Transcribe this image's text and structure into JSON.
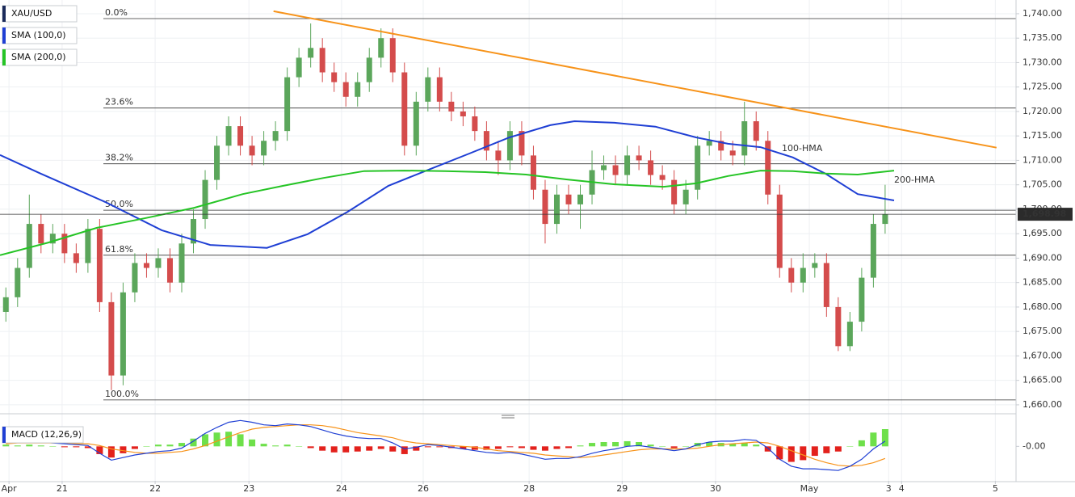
{
  "chart_data": [
    {
      "type": "candlestick",
      "legend_items": [
        {
          "label": "XAU/USD",
          "color": "#1a2a5a"
        },
        {
          "label": "SMA (100,0)",
          "color": "#1f3fd4"
        },
        {
          "label": "SMA (200,0)",
          "color": "#25c425"
        }
      ],
      "x": [
        1.5,
        4.5,
        7.5,
        10.5,
        13.5,
        16.5,
        19.5,
        22.5,
        25.5,
        28.5,
        31.5,
        34.5,
        37.5,
        40.5,
        43.5,
        46.5,
        49.5,
        52.5,
        55.5,
        58.5,
        61.5,
        64.5,
        67.5,
        70.5,
        73.5,
        76.5,
        79.5,
        82.5,
        85.5,
        88.5,
        91.5,
        94.5,
        97.5,
        100.5,
        103.5,
        106.5,
        109.5,
        112.5,
        115.5,
        118.5,
        121.5,
        124.5,
        127.5,
        130.5,
        133.5,
        136.5,
        139.5,
        142.5,
        145.5,
        148.5,
        151.5,
        154.5,
        157.5,
        160.5,
        163.5,
        166.5,
        169.5,
        172.5,
        175.5,
        178.5,
        181.5,
        184.5,
        187.5,
        190.5,
        193.5,
        196.5,
        199.5,
        202.5,
        205.5,
        208.5,
        211.5,
        214.5,
        217.5,
        220.5,
        223.5,
        226.5
      ],
      "open": [
        1679,
        1682,
        1688,
        1697,
        1693,
        1695,
        1691,
        1689,
        1696,
        1681,
        1666,
        1683,
        1689,
        1688,
        1690,
        1685,
        1693,
        1698,
        1706,
        1713,
        1717,
        1713,
        1711,
        1714,
        1716,
        1727,
        1731,
        1733,
        1728,
        1726,
        1723,
        1726,
        1731,
        1735,
        1728,
        1713,
        1722,
        1727,
        1722,
        1720,
        1719,
        1716,
        1712,
        1710,
        1716,
        1711,
        1704,
        1697,
        1703,
        1701,
        1703,
        1708,
        1709,
        1707,
        1711,
        1710,
        1707,
        1706,
        1701,
        1704,
        1713,
        1714,
        1712,
        1711,
        1718,
        1714,
        1703,
        1688,
        1685,
        1688,
        1689,
        1680,
        1672,
        1677,
        1686,
        1697
      ],
      "high": [
        1684,
        1690,
        1703,
        1699,
        1697,
        1697,
        1693,
        1698,
        1698,
        1683,
        1685,
        1691,
        1691,
        1692,
        1692,
        1695,
        1700,
        1708,
        1715,
        1719,
        1719,
        1715,
        1716,
        1718,
        1729,
        1733,
        1738,
        1735,
        1730,
        1728,
        1728,
        1733,
        1737,
        1737,
        1730,
        1724,
        1729,
        1729,
        1724,
        1722,
        1721,
        1718,
        1714,
        1718,
        1718,
        1713,
        1706,
        1705,
        1705,
        1705,
        1712,
        1711,
        1711,
        1713,
        1713,
        1712,
        1709,
        1708,
        1706,
        1715,
        1716,
        1716,
        1714,
        1722,
        1720,
        1716,
        1705,
        1690,
        1691,
        1691,
        1691,
        1682,
        1679,
        1688,
        1699,
        1705
      ],
      "low": [
        1677,
        1680,
        1686,
        1691,
        1691,
        1689,
        1687,
        1687,
        1679,
        1663,
        1664,
        1681,
        1686,
        1686,
        1683,
        1683,
        1691,
        1696,
        1704,
        1711,
        1711,
        1709,
        1709,
        1712,
        1714,
        1725,
        1729,
        1726,
        1724,
        1721,
        1721,
        1724,
        1729,
        1726,
        1711,
        1711,
        1720,
        1720,
        1718,
        1717,
        1714,
        1710,
        1707,
        1708,
        1709,
        1702,
        1693,
        1695,
        1699,
        1696,
        1701,
        1706,
        1705,
        1705,
        1708,
        1705,
        1704,
        1699,
        1699,
        1702,
        1711,
        1710,
        1709,
        1709,
        1712,
        1701,
        1686,
        1683,
        1683,
        1686,
        1678,
        1671,
        1671,
        1675,
        1684,
        1695
      ],
      "close": [
        1682,
        1688,
        1697,
        1693,
        1695,
        1691,
        1689,
        1696,
        1681,
        1666,
        1683,
        1689,
        1688,
        1690,
        1685,
        1693,
        1698,
        1706,
        1713,
        1717,
        1713,
        1711,
        1714,
        1716,
        1727,
        1731,
        1733,
        1728,
        1726,
        1723,
        1726,
        1731,
        1735,
        1728,
        1713,
        1722,
        1727,
        1722,
        1720,
        1719,
        1716,
        1712,
        1710,
        1716,
        1711,
        1704,
        1697,
        1703,
        1701,
        1703,
        1708,
        1709,
        1707,
        1711,
        1710,
        1707,
        1706,
        1701,
        1704,
        1713,
        1714,
        1712,
        1711,
        1718,
        1714,
        1703,
        1688,
        1685,
        1688,
        1689,
        1680,
        1672,
        1677,
        1686,
        1697,
        1698.98
      ],
      "up_color": "#5ba65b",
      "down_color": "#d44c4c",
      "series": [
        {
          "name": "100-HMA",
          "color": "#1f3fd4",
          "x": [
            0,
            10.4,
            26.9,
            41.4,
            53.8,
            68.3,
            78.7,
            89,
            99.4,
            109.7,
            120.1,
            130.4,
            140.8,
            147,
            157.3,
            167.7,
            178.1,
            186.3,
            194.6,
            202.9,
            211.2,
            219.5,
            228.8
          ],
          "values": [
            1711.1,
            1707.3,
            1701.5,
            1695.7,
            1692.7,
            1692.1,
            1694.9,
            1699.5,
            1704.8,
            1708.1,
            1711.4,
            1714.7,
            1717.2,
            1718,
            1717.7,
            1716.9,
            1714.7,
            1713.4,
            1712.7,
            1710.6,
            1707.3,
            1703.1,
            1701.8
          ]
        },
        {
          "name": "200-HMA",
          "color": "#25c425",
          "x": [
            0,
            12.4,
            24.8,
            37.3,
            49.7,
            62.1,
            72.5,
            82.8,
            93.2,
            103.5,
            113.9,
            124.2,
            134.6,
            144.9,
            157.3,
            169.8,
            178.1,
            186.3,
            194.6,
            202.9,
            211.2,
            219.5,
            228.8
          ],
          "values": [
            1690.6,
            1693.2,
            1696.2,
            1698.2,
            1700.3,
            1703.1,
            1704.8,
            1706.4,
            1707.8,
            1707.9,
            1707.8,
            1707.6,
            1707.1,
            1706.1,
            1705.1,
            1704.6,
            1705.3,
            1706.8,
            1707.9,
            1707.8,
            1707.3,
            1707.1,
            1707.9
          ]
        }
      ],
      "trendline": {
        "color": "#f7931a",
        "x": [
          70,
          255
        ],
        "values": [
          1740.5,
          1712.6
        ]
      },
      "fib_levels": [
        {
          "label": "0.0%",
          "value": 1739
        },
        {
          "label": "23.6%",
          "value": 1720.7
        },
        {
          "label": "38.2%",
          "value": 1709.3
        },
        {
          "label": "50.0%",
          "value": 1699.8
        },
        {
          "label": "61.8%",
          "value": 1690.6
        },
        {
          "label": "100.0%",
          "value": 1661
        }
      ],
      "last_price": {
        "value": 1698.98,
        "label": "1,698.98"
      },
      "xlim": [
        0,
        260
      ],
      "xticks": [
        {
          "value": 2.3,
          "label": "Apr"
        },
        {
          "value": 15.9,
          "label": "21"
        },
        {
          "value": 39.7,
          "label": "22"
        },
        {
          "value": 63.7,
          "label": "23"
        },
        {
          "value": 87.4,
          "label": "24"
        },
        {
          "value": 108.3,
          "label": "26"
        },
        {
          "value": 135.4,
          "label": "28"
        },
        {
          "value": 159.2,
          "label": "29"
        },
        {
          "value": 183.1,
          "label": "30"
        },
        {
          "value": 207.1,
          "label": "May"
        },
        {
          "value": 227.4,
          "label": "3"
        },
        {
          "value": 230.7,
          "label": "4"
        },
        {
          "value": 254.7,
          "label": "5"
        }
      ],
      "ylim": [
        1658.5,
        1742.8
      ],
      "yticks": [
        {
          "value": 1660,
          "label": "1,660.00"
        },
        {
          "value": 1665,
          "label": "1,665.00"
        },
        {
          "value": 1670,
          "label": "1,670.00"
        },
        {
          "value": 1675,
          "label": "1,675.00"
        },
        {
          "value": 1680,
          "label": "1,680.00"
        },
        {
          "value": 1685,
          "label": "1,685.00"
        },
        {
          "value": 1690,
          "label": "1,690.00"
        },
        {
          "value": 1695,
          "label": "1,695.00"
        },
        {
          "value": 1700,
          "label": "1,700.00"
        },
        {
          "value": 1705,
          "label": "1,705.00"
        },
        {
          "value": 1710,
          "label": "1,710.00"
        },
        {
          "value": 1715,
          "label": "1,715.00"
        },
        {
          "value": 1720,
          "label": "1,720.00"
        },
        {
          "value": 1725,
          "label": "1,725.00"
        },
        {
          "value": 1730,
          "label": "1,730.00"
        },
        {
          "value": 1735,
          "label": "1,735.00"
        },
        {
          "value": 1740,
          "label": "1,740.00"
        }
      ],
      "grid": true
    },
    {
      "type": "macd",
      "title": "MACD (12,26,9)",
      "title_color": "#1f3fd4",
      "histogram": [
        0.2,
        0.1,
        0.2,
        0.1,
        0,
        -0.1,
        -0.1,
        -0.2,
        -0.9,
        -1.3,
        -0.8,
        -0.3,
        0,
        0.2,
        0.2,
        0.4,
        0.9,
        1.4,
        1.6,
        1.7,
        1.4,
        0.8,
        0.3,
        0.1,
        0.2,
        0,
        -0.2,
        -0.5,
        -0.7,
        -0.7,
        -0.6,
        -0.5,
        -0.3,
        -0.6,
        -0.9,
        -0.5,
        -0.1,
        -0.1,
        -0.2,
        -0.3,
        -0.4,
        -0.4,
        -0.3,
        -0.1,
        -0.2,
        -0.4,
        -0.5,
        -0.3,
        -0.2,
        0.1,
        0.4,
        0.5,
        0.5,
        0.6,
        0.5,
        0.2,
        0,
        -0.2,
        0,
        0.4,
        0.5,
        0.4,
        0.3,
        0.4,
        0.2,
        -0.6,
        -1.5,
        -1.8,
        -1.6,
        -1.1,
        -0.8,
        -0.6,
        0,
        0.7,
        1.6,
        2.0
      ],
      "macd": [
        0.5,
        0.5,
        0.6,
        0.5,
        0.4,
        0.3,
        0.2,
        0.1,
        -0.8,
        -1.6,
        -1.3,
        -1.0,
        -0.8,
        -0.6,
        -0.5,
        -0.2,
        0.6,
        1.5,
        2.2,
        2.8,
        3.0,
        2.8,
        2.5,
        2.4,
        2.6,
        2.5,
        2.3,
        1.9,
        1.5,
        1.2,
        1.0,
        0.9,
        0.9,
        0.4,
        -0.3,
        -0.1,
        0.2,
        0.1,
        -0.1,
        -0.3,
        -0.5,
        -0.7,
        -0.8,
        -0.7,
        -0.9,
        -1.2,
        -1.5,
        -1.4,
        -1.4,
        -1.2,
        -0.8,
        -0.5,
        -0.3,
        0.0,
        0.1,
        -0.1,
        -0.3,
        -0.5,
        -0.3,
        0.2,
        0.5,
        0.6,
        0.6,
        0.8,
        0.7,
        -0.2,
        -1.5,
        -2.3,
        -2.6,
        -2.6,
        -2.7,
        -2.8,
        -2.3,
        -1.5,
        -0.3,
        0.6
      ],
      "signal": [
        0.3,
        0.4,
        0.4,
        0.4,
        0.4,
        0.4,
        0.3,
        0.3,
        0.1,
        -0.3,
        -0.5,
        -0.7,
        -0.8,
        -0.8,
        -0.7,
        -0.6,
        -0.3,
        0.1,
        0.6,
        1.1,
        1.6,
        2.0,
        2.2,
        2.3,
        2.4,
        2.5,
        2.5,
        2.4,
        2.2,
        1.9,
        1.6,
        1.4,
        1.2,
        1.0,
        0.6,
        0.4,
        0.3,
        0.2,
        0.1,
        0.0,
        -0.1,
        -0.3,
        -0.5,
        -0.6,
        -0.7,
        -0.8,
        -1.0,
        -1.1,
        -1.2,
        -1.3,
        -1.2,
        -1.0,
        -0.8,
        -0.6,
        -0.4,
        -0.3,
        -0.3,
        -0.3,
        -0.3,
        -0.2,
        0.0,
        0.2,
        0.3,
        0.4,
        0.5,
        0.4,
        0.0,
        -0.5,
        -1.0,
        -1.5,
        -1.9,
        -2.2,
        -2.3,
        -2.2,
        -1.9,
        -1.4
      ],
      "hist_up_color": "#6ee04a",
      "hist_down_color": "#e3211c",
      "macd_color": "#1f3fd4",
      "signal_color": "#f7931a",
      "ylim": [
        -4,
        3.5
      ],
      "yticks": [
        {
          "value": 0,
          "label": "-0.00"
        }
      ]
    }
  ]
}
